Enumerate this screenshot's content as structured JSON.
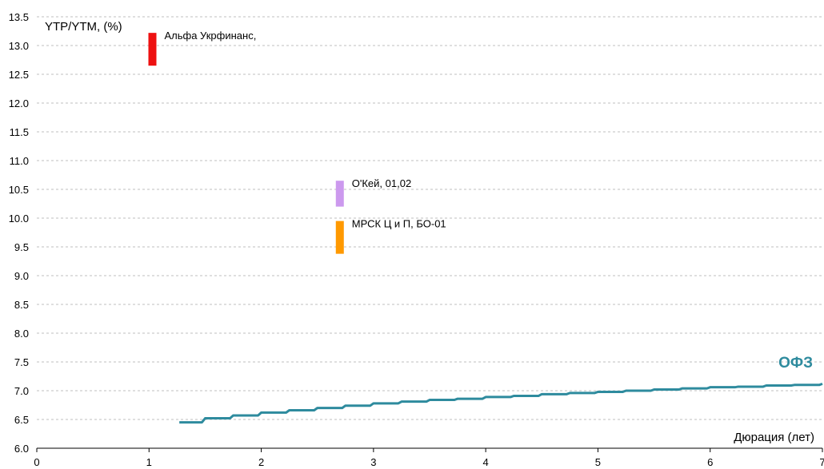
{
  "chart_data": {
    "type": "line",
    "ylabel": "YTP/YTM, (%)",
    "xlabel": "Дюрация (лет)",
    "xlim": [
      0,
      7
    ],
    "ylim": [
      6.0,
      13.5
    ],
    "x_ticks": [
      "0",
      "1",
      "2",
      "3",
      "4",
      "5",
      "6",
      "7"
    ],
    "y_ticks": [
      "6.0",
      "6.5",
      "7.0",
      "7.5",
      "8.0",
      "8.5",
      "9.0",
      "9.5",
      "10.0",
      "10.5",
      "11.0",
      "11.5",
      "12.0",
      "12.5",
      "13.0",
      "13.5"
    ],
    "grid": true,
    "series": [
      {
        "name": "ОФЗ",
        "color": "#2e8b9e",
        "x": [
          1.27,
          1.5,
          1.75,
          2.0,
          2.25,
          2.5,
          2.75,
          3.0,
          3.25,
          3.5,
          3.75,
          4.0,
          4.25,
          4.5,
          4.75,
          5.0,
          5.25,
          5.5,
          5.75,
          6.0,
          6.25,
          6.5,
          6.75,
          7.0
        ],
        "y": [
          6.45,
          6.52,
          6.57,
          6.62,
          6.66,
          6.7,
          6.74,
          6.78,
          6.81,
          6.84,
          6.86,
          6.89,
          6.91,
          6.94,
          6.96,
          6.98,
          7.0,
          7.02,
          7.04,
          7.06,
          7.07,
          7.09,
          7.1,
          7.12
        ]
      }
    ],
    "ranges": [
      {
        "label": "Альфа Укрфинанс,",
        "x": 1.03,
        "y_low": 12.65,
        "y_high": 13.22,
        "color": "#ee1111"
      },
      {
        "label": "О'Кей, 01,02",
        "x": 2.7,
        "y_low": 10.2,
        "y_high": 10.65,
        "color": "#cc99ee"
      },
      {
        "label": "МРСК Ц и П, БО-01",
        "x": 2.7,
        "y_low": 9.38,
        "y_high": 9.95,
        "color": "#ff9900"
      }
    ]
  }
}
